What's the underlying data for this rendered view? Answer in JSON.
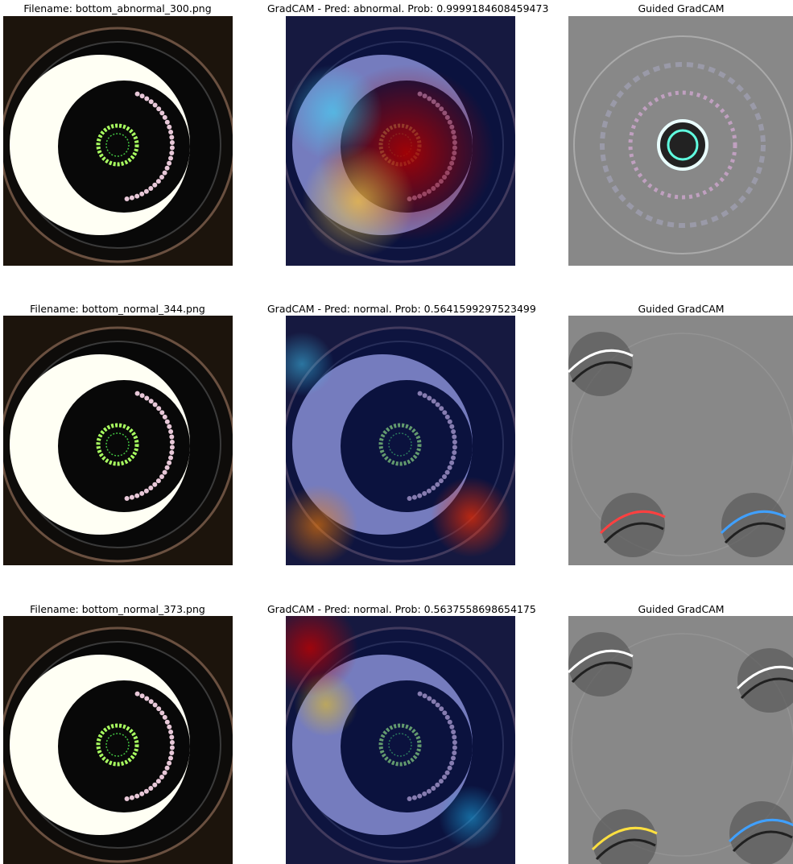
{
  "rows": [
    {
      "original_title": "Filename: bottom_abnormal_300.png",
      "gradcam_title": "GradCAM - Pred: abnormal. Prob: 0.9999184608459473",
      "guided_title": "Guided GradCAM"
    },
    {
      "original_title": "Filename: bottom_normal_344.png",
      "gradcam_title": "GradCAM - Pred: normal. Prob: 0.5641599297523499",
      "guided_title": "Guided GradCAM"
    },
    {
      "original_title": "Filename: bottom_normal_373.png",
      "gradcam_title": "GradCAM - Pred: normal. Prob: 0.5637558698654175",
      "guided_title": "Guided GradCAM"
    }
  ]
}
